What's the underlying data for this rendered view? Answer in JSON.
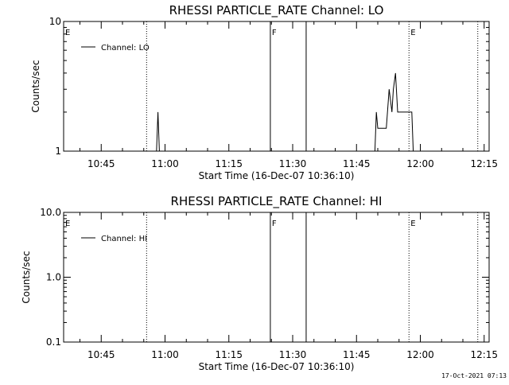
{
  "chart_data": [
    {
      "type": "line",
      "title": "RHESSI PARTICLE_RATE Channel: LO",
      "xlabel": "Start Time (16-Dec-07 10:36:10)",
      "ylabel": "Counts/sec",
      "yscale": "log",
      "ylim": [
        1,
        10
      ],
      "yticks": [
        {
          "value": 1,
          "label": "1"
        },
        {
          "value": 10,
          "label": "10"
        }
      ],
      "xlim": [
        "10:36:10",
        "12:16:10"
      ],
      "xticks": [
        "10:45",
        "11:00",
        "11:15",
        "11:30",
        "11:45",
        "12:00",
        "12:15"
      ],
      "legend": "top-left",
      "series": [
        {
          "name": "Channel: LO",
          "x": [
            "10:58:00",
            "10:58:20",
            "10:58:40",
            "10:59:00",
            "11:49:20",
            "11:49:40",
            "11:50:00",
            "11:51:00",
            "11:52:00",
            "11:52:40",
            "11:53:20",
            "11:53:40",
            "11:54:10",
            "11:54:40",
            "11:55:00",
            "11:55:20",
            "11:56:00",
            "11:56:20",
            "11:57:00",
            "11:58:00",
            "11:58:20",
            "11:58:40"
          ],
          "y": [
            1,
            2,
            1,
            1,
            1,
            2,
            1.5,
            1.5,
            1.5,
            3,
            2,
            3,
            4,
            2,
            2,
            2,
            2,
            2,
            2,
            2,
            1,
            1
          ]
        }
      ],
      "markers": [
        {
          "label": "E",
          "time": "10:36:10",
          "style": "dotted"
        },
        {
          "label": "",
          "time": "10:55:40",
          "style": "dotted"
        },
        {
          "label": "F",
          "time": "11:24:45",
          "style": "solid"
        },
        {
          "label": "",
          "time": "11:33:10",
          "style": "solid"
        },
        {
          "label": "E",
          "time": "11:57:20",
          "style": "dotted"
        },
        {
          "label": "",
          "time": "12:13:30",
          "style": "dotted"
        }
      ]
    },
    {
      "type": "line",
      "title": "RHESSI PARTICLE_RATE Channel: HI",
      "xlabel": "Start Time (16-Dec-07 10:36:10)",
      "ylabel": "Counts/sec",
      "yscale": "log",
      "ylim": [
        0.1,
        10
      ],
      "yticks": [
        {
          "value": 0.1,
          "label": "0.1"
        },
        {
          "value": 1,
          "label": "1.0"
        },
        {
          "value": 10,
          "label": "10.0"
        }
      ],
      "xlim": [
        "10:36:10",
        "12:16:10"
      ],
      "xticks": [
        "10:45",
        "11:00",
        "11:15",
        "11:30",
        "11:45",
        "12:00",
        "12:15"
      ],
      "legend": "top-left",
      "series": [
        {
          "name": "Channel: HI",
          "x": [],
          "y": []
        }
      ],
      "markers": [
        {
          "label": "E",
          "time": "10:36:10",
          "style": "dotted"
        },
        {
          "label": "",
          "time": "10:55:40",
          "style": "dotted"
        },
        {
          "label": "F",
          "time": "11:24:45",
          "style": "solid"
        },
        {
          "label": "",
          "time": "11:33:10",
          "style": "solid"
        },
        {
          "label": "E",
          "time": "11:57:20",
          "style": "dotted"
        },
        {
          "label": "",
          "time": "12:13:30",
          "style": "dotted"
        }
      ]
    }
  ],
  "footer": {
    "timestamp": "17-Oct-2021 07:13"
  }
}
